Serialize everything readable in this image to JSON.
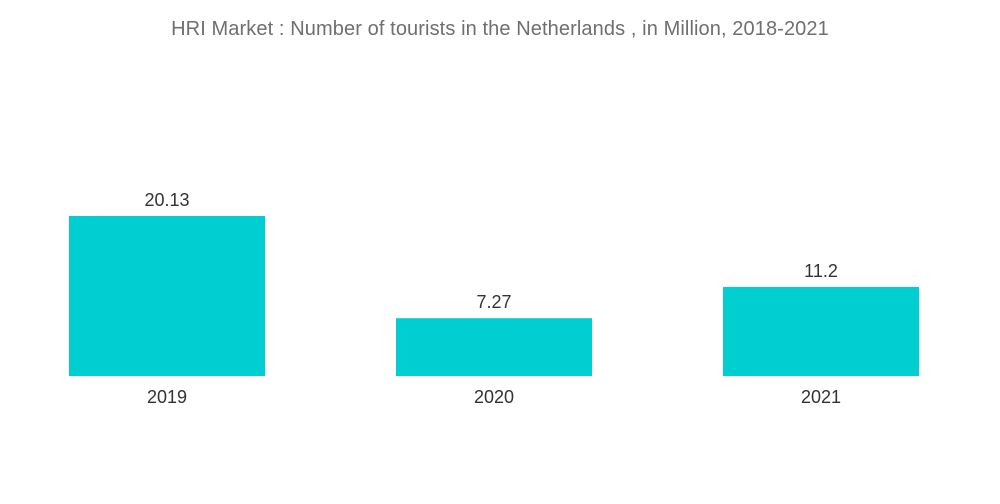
{
  "chart_data": {
    "type": "bar",
    "title": "HRI Market : Number of tourists in the Netherlands , in Million, 2018-2021",
    "categories": [
      "2019",
      "2020",
      "2021"
    ],
    "values": [
      20.13,
      7.27,
      11.2
    ],
    "data_labels": [
      "20.13",
      "7.27",
      "11.2"
    ],
    "xlabel": "",
    "ylabel": "",
    "ylim": [
      0,
      25
    ],
    "grid": false,
    "legend": "none",
    "bar_color": "#00ced1"
  }
}
